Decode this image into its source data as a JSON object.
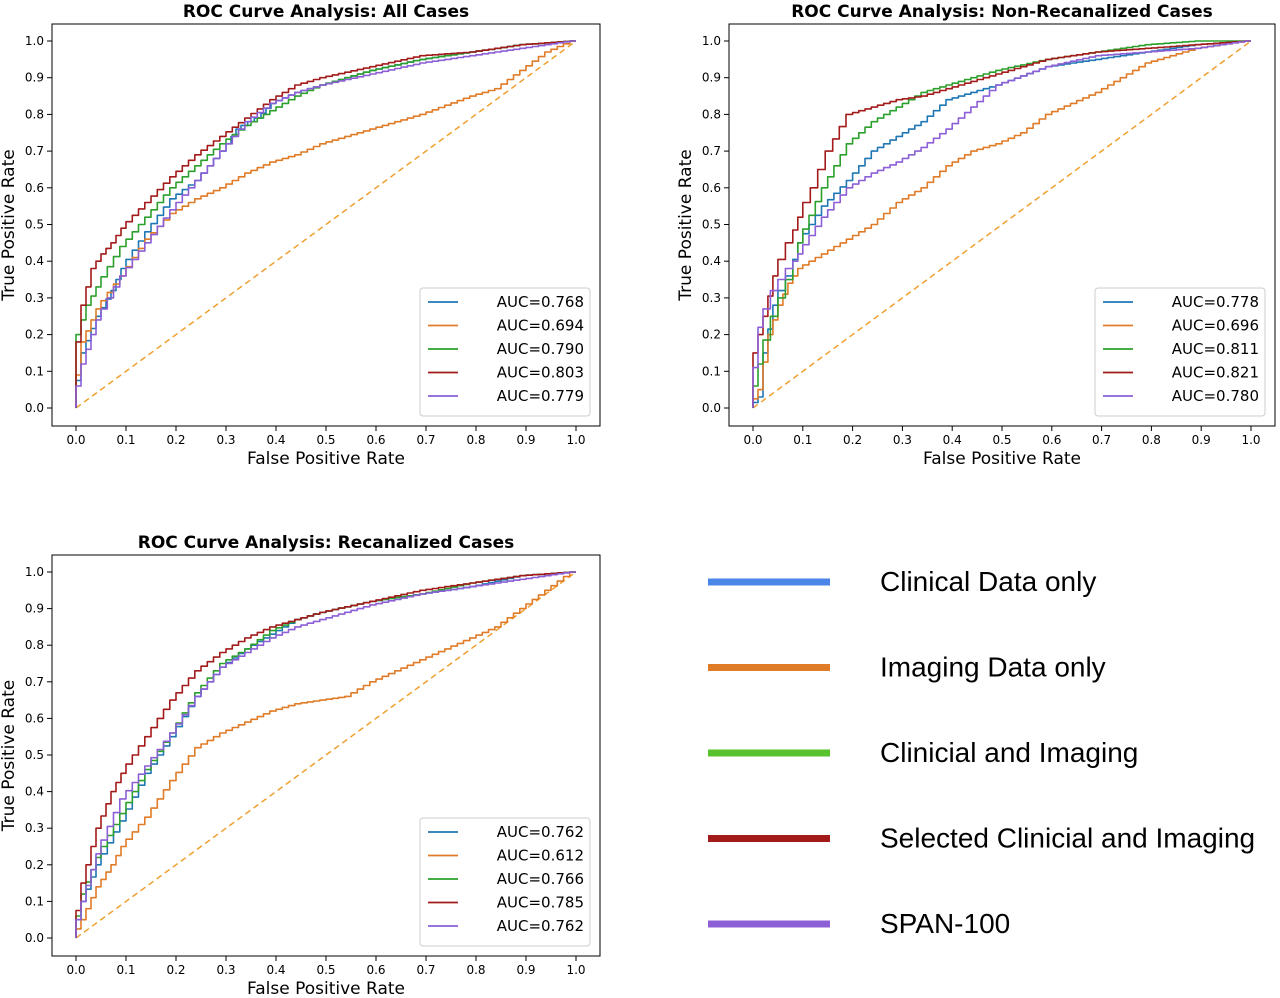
{
  "colors": {
    "clinical": "#1f77b4",
    "imaging": "#e07b27",
    "clinical_imaging": "#2ca02c",
    "selected": "#a31a1a",
    "span100": "#8c5fd6",
    "chance": "#f0a030"
  },
  "big_legend": [
    {
      "label": "Clinical Data only",
      "color": "#4a86e8"
    },
    {
      "label": "Imaging Data only",
      "color": "#e07b27"
    },
    {
      "label": "Clinicial and Imaging",
      "color": "#57c22b"
    },
    {
      "label": "Selected Clinicial and Imaging",
      "color": "#a31a1a"
    },
    {
      "label": "SPAN-100",
      "color": "#8c5fd6"
    }
  ],
  "chart_data": [
    {
      "type": "line",
      "title": "ROC Curve Analysis: All Cases",
      "xlabel": "False Positive Rate",
      "ylabel": "True Positive Rate",
      "xlim": [
        0,
        1
      ],
      "ylim": [
        0,
        1
      ],
      "xticks": [
        "0.0",
        "0.1",
        "0.2",
        "0.3",
        "0.4",
        "0.5",
        "0.6",
        "0.7",
        "0.8",
        "0.9",
        "1.0"
      ],
      "yticks": [
        "0.0",
        "0.1",
        "0.2",
        "0.3",
        "0.4",
        "0.5",
        "0.6",
        "0.7",
        "0.8",
        "0.9",
        "1.0"
      ],
      "legend": "lower-right",
      "series": [
        {
          "label": "AUC=0.768",
          "color": "#1f77b4",
          "x": [
            0,
            0.02,
            0.05,
            0.08,
            0.1,
            0.15,
            0.2,
            0.25,
            0.3,
            0.33,
            0.37,
            0.4,
            0.45,
            0.5,
            0.6,
            0.7,
            0.8,
            0.9,
            1
          ],
          "y": [
            0,
            0.15,
            0.25,
            0.32,
            0.38,
            0.48,
            0.57,
            0.62,
            0.7,
            0.76,
            0.79,
            0.83,
            0.86,
            0.88,
            0.92,
            0.95,
            0.97,
            0.99,
            1
          ]
        },
        {
          "label": "AUC=0.694",
          "color": "#e07b27",
          "x": [
            0,
            0.02,
            0.05,
            0.1,
            0.15,
            0.2,
            0.25,
            0.3,
            0.35,
            0.4,
            0.45,
            0.5,
            0.6,
            0.7,
            0.8,
            0.85,
            0.9,
            0.95,
            1
          ],
          "y": [
            0,
            0.18,
            0.27,
            0.36,
            0.46,
            0.53,
            0.57,
            0.6,
            0.64,
            0.67,
            0.69,
            0.72,
            0.76,
            0.8,
            0.85,
            0.87,
            0.92,
            0.97,
            1
          ]
        },
        {
          "label": "AUC=0.790",
          "color": "#2ca02c",
          "x": [
            0,
            0.01,
            0.03,
            0.05,
            0.1,
            0.15,
            0.2,
            0.25,
            0.3,
            0.35,
            0.4,
            0.45,
            0.5,
            0.6,
            0.7,
            0.8,
            0.9,
            1
          ],
          "y": [
            0,
            0.2,
            0.28,
            0.33,
            0.44,
            0.52,
            0.6,
            0.66,
            0.72,
            0.77,
            0.81,
            0.85,
            0.88,
            0.92,
            0.95,
            0.97,
            0.99,
            1
          ]
        },
        {
          "label": "AUC=0.803",
          "color": "#a31a1a",
          "x": [
            0,
            0.01,
            0.02,
            0.04,
            0.06,
            0.08,
            0.1,
            0.15,
            0.2,
            0.25,
            0.3,
            0.35,
            0.4,
            0.45,
            0.5,
            0.6,
            0.7,
            0.8,
            0.9,
            1
          ],
          "y": [
            0,
            0.18,
            0.28,
            0.38,
            0.42,
            0.45,
            0.49,
            0.56,
            0.63,
            0.69,
            0.74,
            0.79,
            0.84,
            0.88,
            0.9,
            0.93,
            0.96,
            0.97,
            0.99,
            1
          ]
        },
        {
          "label": "AUC=0.779",
          "color": "#8c5fd6",
          "x": [
            0,
            0.02,
            0.05,
            0.1,
            0.15,
            0.2,
            0.25,
            0.3,
            0.35,
            0.4,
            0.45,
            0.5,
            0.6,
            0.7,
            0.8,
            0.9,
            1
          ],
          "y": [
            0,
            0.12,
            0.24,
            0.36,
            0.45,
            0.54,
            0.62,
            0.7,
            0.78,
            0.83,
            0.86,
            0.88,
            0.91,
            0.94,
            0.96,
            0.98,
            1
          ]
        }
      ]
    },
    {
      "type": "line",
      "title": "ROC Curve Analysis: Non-Recanalized Cases",
      "xlabel": "False Positive Rate",
      "ylabel": "True Positive Rate",
      "xlim": [
        0,
        1
      ],
      "ylim": [
        0,
        1
      ],
      "xticks": [
        "0.0",
        "0.1",
        "0.2",
        "0.3",
        "0.4",
        "0.5",
        "0.6",
        "0.7",
        "0.8",
        "0.9",
        "1.0"
      ],
      "yticks": [
        "0.0",
        "0.1",
        "0.2",
        "0.3",
        "0.4",
        "0.5",
        "0.6",
        "0.7",
        "0.8",
        "0.9",
        "1.0"
      ],
      "legend": "lower-right",
      "series": [
        {
          "label": "AUC=0.778",
          "color": "#1f77b4",
          "x": [
            0,
            0.02,
            0.03,
            0.05,
            0.08,
            0.1,
            0.15,
            0.2,
            0.25,
            0.3,
            0.35,
            0.4,
            0.5,
            0.6,
            0.7,
            0.8,
            0.9,
            1
          ],
          "y": [
            0,
            0.03,
            0.15,
            0.28,
            0.36,
            0.45,
            0.55,
            0.62,
            0.7,
            0.74,
            0.78,
            0.84,
            0.88,
            0.93,
            0.95,
            0.97,
            0.99,
            1
          ]
        },
        {
          "label": "AUC=0.696",
          "color": "#e07b27",
          "x": [
            0,
            0.02,
            0.04,
            0.06,
            0.08,
            0.1,
            0.15,
            0.2,
            0.25,
            0.3,
            0.35,
            0.4,
            0.45,
            0.5,
            0.55,
            0.6,
            0.7,
            0.8,
            0.9,
            1
          ],
          "y": [
            0,
            0.05,
            0.2,
            0.28,
            0.34,
            0.38,
            0.42,
            0.46,
            0.5,
            0.56,
            0.6,
            0.66,
            0.7,
            0.72,
            0.75,
            0.8,
            0.86,
            0.94,
            0.98,
            1
          ]
        },
        {
          "label": "AUC=0.811",
          "color": "#2ca02c",
          "x": [
            0,
            0.02,
            0.05,
            0.08,
            0.1,
            0.15,
            0.2,
            0.25,
            0.3,
            0.35,
            0.4,
            0.5,
            0.6,
            0.7,
            0.8,
            0.9,
            1
          ],
          "y": [
            0,
            0.12,
            0.25,
            0.35,
            0.45,
            0.6,
            0.72,
            0.78,
            0.82,
            0.86,
            0.88,
            0.92,
            0.95,
            0.97,
            0.99,
            1,
            1
          ]
        },
        {
          "label": "AUC=0.821",
          "color": "#a31a1a",
          "x": [
            0,
            0.01,
            0.03,
            0.05,
            0.08,
            0.1,
            0.13,
            0.16,
            0.2,
            0.25,
            0.3,
            0.35,
            0.4,
            0.5,
            0.6,
            0.7,
            0.8,
            0.9,
            1
          ],
          "y": [
            0,
            0.15,
            0.25,
            0.36,
            0.45,
            0.52,
            0.6,
            0.7,
            0.8,
            0.82,
            0.84,
            0.85,
            0.87,
            0.91,
            0.95,
            0.97,
            0.98,
            0.99,
            1
          ]
        },
        {
          "label": "AUC=0.780",
          "color": "#8c5fd6",
          "x": [
            0,
            0.02,
            0.05,
            0.08,
            0.1,
            0.15,
            0.2,
            0.25,
            0.3,
            0.35,
            0.4,
            0.45,
            0.5,
            0.6,
            0.7,
            0.8,
            0.9,
            1
          ],
          "y": [
            0,
            0.22,
            0.32,
            0.38,
            0.42,
            0.52,
            0.6,
            0.64,
            0.67,
            0.71,
            0.76,
            0.82,
            0.88,
            0.93,
            0.96,
            0.97,
            0.98,
            1
          ]
        }
      ]
    },
    {
      "type": "line",
      "title": "ROC Curve Analysis: Recanalized Cases",
      "xlabel": "False Positive Rate",
      "ylabel": "True Positive Rate",
      "xlim": [
        0,
        1
      ],
      "ylim": [
        0,
        1
      ],
      "xticks": [
        "0.0",
        "0.1",
        "0.2",
        "0.3",
        "0.4",
        "0.5",
        "0.6",
        "0.7",
        "0.8",
        "0.9",
        "1.0"
      ],
      "yticks": [
        "0.0",
        "0.1",
        "0.2",
        "0.3",
        "0.4",
        "0.5",
        "0.6",
        "0.7",
        "0.8",
        "0.9",
        "1.0"
      ],
      "legend": "lower-right",
      "series": [
        {
          "label": "AUC=0.762",
          "color": "#1f77b4",
          "x": [
            0,
            0.02,
            0.05,
            0.1,
            0.15,
            0.2,
            0.25,
            0.3,
            0.35,
            0.4,
            0.45,
            0.5,
            0.6,
            0.7,
            0.8,
            0.9,
            1
          ],
          "y": [
            0,
            0.1,
            0.2,
            0.32,
            0.45,
            0.55,
            0.66,
            0.74,
            0.79,
            0.83,
            0.87,
            0.89,
            0.92,
            0.94,
            0.96,
            0.99,
            1
          ]
        },
        {
          "label": "AUC=0.612",
          "color": "#e07b27",
          "x": [
            0,
            0.02,
            0.05,
            0.08,
            0.1,
            0.15,
            0.2,
            0.25,
            0.3,
            0.35,
            0.4,
            0.45,
            0.5,
            0.55,
            0.6,
            0.65,
            0.7,
            0.75,
            0.8,
            0.85,
            0.9,
            0.95,
            1
          ],
          "y": [
            0,
            0.05,
            0.14,
            0.2,
            0.25,
            0.33,
            0.43,
            0.52,
            0.56,
            0.59,
            0.62,
            0.64,
            0.65,
            0.66,
            0.7,
            0.73,
            0.76,
            0.79,
            0.82,
            0.85,
            0.9,
            0.95,
            1
          ]
        },
        {
          "label": "AUC=0.766",
          "color": "#2ca02c",
          "x": [
            0,
            0.02,
            0.05,
            0.1,
            0.15,
            0.2,
            0.25,
            0.3,
            0.35,
            0.4,
            0.45,
            0.5,
            0.6,
            0.7,
            0.8,
            0.9,
            1
          ],
          "y": [
            0,
            0.12,
            0.22,
            0.34,
            0.46,
            0.56,
            0.67,
            0.75,
            0.79,
            0.84,
            0.87,
            0.89,
            0.92,
            0.94,
            0.97,
            0.99,
            1
          ]
        },
        {
          "label": "AUC=0.785",
          "color": "#a31a1a",
          "x": [
            0,
            0.02,
            0.05,
            0.08,
            0.1,
            0.15,
            0.2,
            0.25,
            0.3,
            0.35,
            0.4,
            0.45,
            0.5,
            0.6,
            0.7,
            0.8,
            0.9,
            1
          ],
          "y": [
            0,
            0.15,
            0.3,
            0.4,
            0.45,
            0.55,
            0.65,
            0.73,
            0.78,
            0.82,
            0.85,
            0.87,
            0.89,
            0.92,
            0.95,
            0.97,
            0.99,
            1
          ]
        },
        {
          "label": "AUC=0.762",
          "color": "#8c5fd6",
          "x": [
            0,
            0.02,
            0.05,
            0.1,
            0.15,
            0.2,
            0.25,
            0.3,
            0.35,
            0.4,
            0.45,
            0.5,
            0.6,
            0.7,
            0.8,
            0.9,
            1
          ],
          "y": [
            0,
            0.1,
            0.23,
            0.38,
            0.47,
            0.56,
            0.66,
            0.74,
            0.78,
            0.82,
            0.85,
            0.87,
            0.91,
            0.94,
            0.96,
            0.98,
            1
          ]
        }
      ]
    }
  ]
}
